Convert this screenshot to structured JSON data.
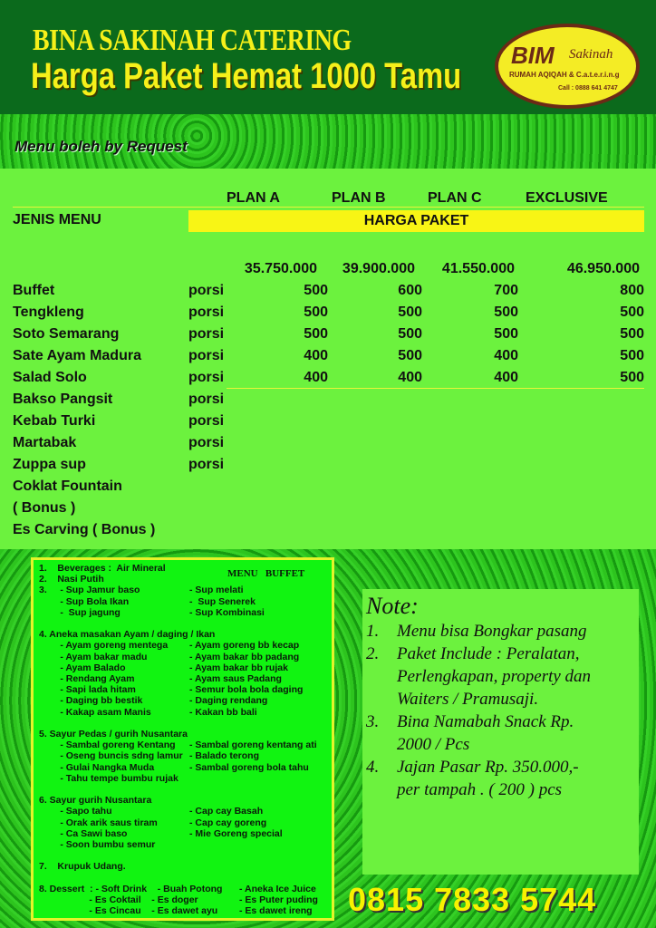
{
  "header": {
    "company": "BINA SAKINAH CATERING",
    "title": "Harga Paket Hemat 1000 Tamu"
  },
  "logo": {
    "brand": "BIM",
    "sub": "Sakinah",
    "tagline": "RUMAH AQIQAH & C.a.t.e.r.i.n.g",
    "call": "Call : 0888 641 4747",
    "colors": {
      "fill": "#f4ec25",
      "text": "#6b2a16"
    }
  },
  "request_note": "Menu boleh by Request",
  "table": {
    "plans": [
      "PLAN  A",
      "PLAN  B",
      "PLAN C",
      "EXCLUSIVE"
    ],
    "menu_header": "JENIS MENU",
    "price_header": "HARGA PAKET",
    "prices": [
      "35.750.000",
      "39.900.000",
      "41.550.000",
      "46.950.000"
    ],
    "rows": [
      {
        "name": "Buffet",
        "unit": "porsi",
        "values": [
          "500",
          "600",
          "700",
          "800"
        ]
      },
      {
        "name": "Tengkleng",
        "unit": "porsi",
        "values": [
          "500",
          "500",
          "500",
          "500"
        ]
      },
      {
        "name": "Soto Semarang",
        "unit": "porsi",
        "values": [
          "500",
          "500",
          "500",
          "500"
        ]
      },
      {
        "name": "Sate Ayam Madura",
        "unit": "porsi",
        "values": [
          "400",
          "500",
          "400",
          "500"
        ]
      },
      {
        "name": "Salad Solo",
        "unit": "porsi",
        "values": [
          "400",
          "400",
          "400",
          "500"
        ]
      },
      {
        "name": "Bakso Pangsit",
        "unit": "porsi",
        "values": []
      },
      {
        "name": "Kebab Turki",
        "unit": "porsi",
        "values": []
      },
      {
        "name": "Martabak",
        "unit": "porsi",
        "values": []
      },
      {
        "name": "Zuppa sup",
        "unit": "porsi",
        "values": []
      },
      {
        "name": "Coklat Fountain",
        "unit": "",
        "values": []
      },
      {
        "name": "( Bonus )",
        "unit": "",
        "values": []
      },
      {
        "name": "Es Carving  ( Bonus  )",
        "unit": "",
        "values": []
      }
    ]
  },
  "buffet": {
    "title": "MENU   BUFFET",
    "lines": [
      [
        "1.    Beverages :  Air Mineral",
        ""
      ],
      [
        "2.    Nasi Putih",
        ""
      ],
      [
        "3.     - Sup Jamur baso",
        "- Sup melati"
      ],
      [
        "        - Sup Bola Ikan",
        "-  Sup Senerek"
      ],
      [
        "        -  Sup jagung",
        "- Sup Kombinasi"
      ],
      [
        "",
        ""
      ],
      [
        "4. Aneka masakan Ayam / daging / Ikan",
        ""
      ],
      [
        "        - Ayam goreng mentega",
        "- Ayam goreng bb kecap"
      ],
      [
        "        - Ayam bakar madu",
        "- Ayam bakar bb padang"
      ],
      [
        "        - Ayam Balado",
        "- Ayam bakar bb rujak"
      ],
      [
        "        - Rendang Ayam",
        "- Ayam saus Padang"
      ],
      [
        "        - Sapi lada hitam",
        "- Semur bola bola daging"
      ],
      [
        "        - Daging bb bestik",
        "- Daging rendang"
      ],
      [
        "        - Kakap asam Manis",
        "- Kakan bb bali"
      ],
      [
        "",
        ""
      ],
      [
        "5. Sayur Pedas / gurih Nusantara",
        ""
      ],
      [
        "        - Sambal goreng Kentang",
        "- Sambal goreng kentang ati"
      ],
      [
        "        - Oseng buncis sdng lamur",
        "- Balado terong"
      ],
      [
        "        - Gulai Nangka Muda",
        "- Sambal goreng bola tahu"
      ],
      [
        "        - Tahu tempe bumbu rujak",
        ""
      ],
      [
        "",
        ""
      ],
      [
        "6. Sayur gurih Nusantara",
        ""
      ],
      [
        "        - Sapo tahu",
        "- Cap cay Basah"
      ],
      [
        "        - Orak arik saus tiram",
        "- Cap cay goreng"
      ],
      [
        "        - Ca Sawi baso",
        "- Mie Goreng special"
      ],
      [
        "        - Soon bumbu semur",
        ""
      ],
      [
        "",
        ""
      ],
      [
        "7.    Krupuk Udang.",
        ""
      ],
      [
        "",
        ""
      ],
      [
        "8. Dessert  : - Soft Drink    - Buah Potong",
        "- Aneka Ice Juice"
      ],
      [
        "                   - Es Coktail    - Es doger",
        "- Es Puter puding"
      ],
      [
        "                   - Es Cincau    - Es dawet ayu",
        "- Es dawet ireng"
      ]
    ]
  },
  "note": {
    "title": "Note:",
    "items": [
      [
        "1.",
        "Menu bisa Bongkar pasang"
      ],
      [
        "2.",
        "Paket Include : Peralatan,"
      ],
      [
        "",
        "Perlengkapan, property dan"
      ],
      [
        "",
        "Waiters / Pramusaji."
      ],
      [
        "3.",
        "Bina Namabah Snack Rp."
      ],
      [
        "",
        "2000 / Pcs"
      ],
      [
        "4.",
        "Jajan Pasar Rp. 350.000,-"
      ],
      [
        "",
        "per tampah . ( 200 ) pcs"
      ]
    ]
  },
  "phone": "0815 7833 5744"
}
